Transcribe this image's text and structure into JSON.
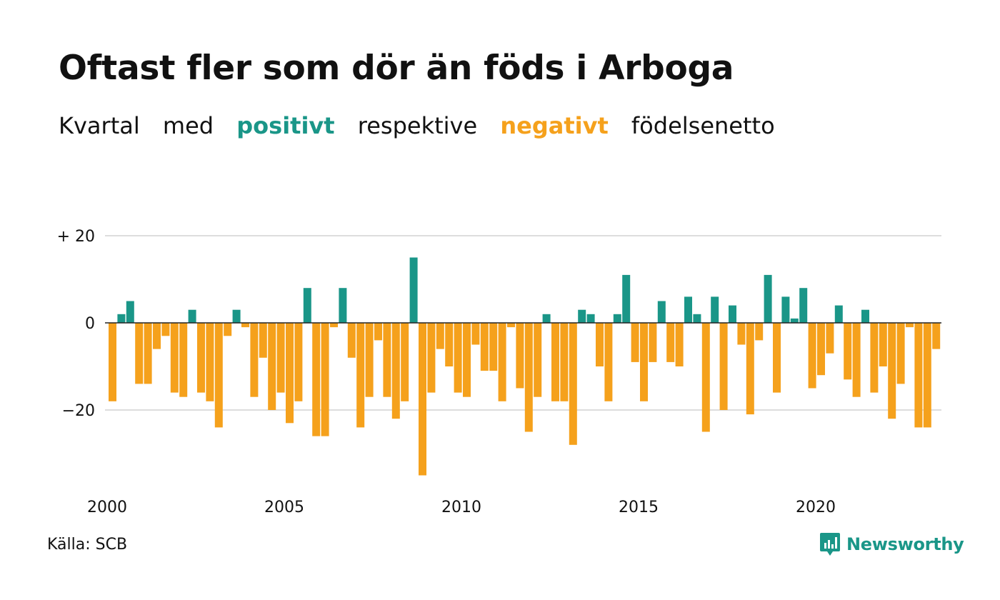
{
  "title": "Oftast fler som dör än föds i Arboga",
  "subtitle": {
    "part1": "Kvartal",
    "part2": "med",
    "positive": "positivt",
    "part3": "respektive",
    "negative": "negativt",
    "part4": "födelsenetto"
  },
  "colors": {
    "positive": "#1a9688",
    "negative": "#f5a11c",
    "grid": "#dddddd",
    "text": "#111111"
  },
  "source": "Källa: SCB",
  "brand": {
    "name": "Newsworthy",
    "icon": "newsworthy-chart-icon"
  },
  "chart_data": {
    "type": "bar",
    "xlabel": "",
    "ylabel": "",
    "ylim": [
      -36,
      22
    ],
    "grid": true,
    "y_ticks": [
      {
        "value": 20,
        "label": "+ 20"
      },
      {
        "value": 0,
        "label": "0"
      },
      {
        "value": -20,
        "label": "−20"
      }
    ],
    "x_ticks": [
      "2000",
      "2005",
      "2010",
      "2015",
      "2020"
    ],
    "start_year": 2000,
    "values": [
      -18,
      2,
      5,
      -14,
      -14,
      -6,
      -3,
      -16,
      -17,
      3,
      -16,
      -18,
      -24,
      -3,
      3,
      -1,
      -17,
      -8,
      -20,
      -16,
      -23,
      -18,
      8,
      -26,
      -26,
      -1,
      8,
      -8,
      -24,
      -17,
      -4,
      -17,
      -22,
      -18,
      15,
      -35,
      -16,
      -6,
      -10,
      -16,
      -17,
      -5,
      -11,
      -11,
      -18,
      -1,
      -15,
      -25,
      -17,
      2,
      -18,
      -18,
      -28,
      3,
      2,
      -10,
      -18,
      2,
      11,
      -9,
      -18,
      -9,
      5,
      -9,
      -10,
      6,
      2,
      -25,
      6,
      -20,
      4,
      -5,
      -21,
      -4,
      11,
      -16,
      6,
      1,
      8,
      -15,
      -12,
      -7,
      4,
      -13,
      -17,
      3,
      -16,
      -10,
      -22,
      -14,
      -1,
      -24,
      -24,
      -6
    ]
  }
}
